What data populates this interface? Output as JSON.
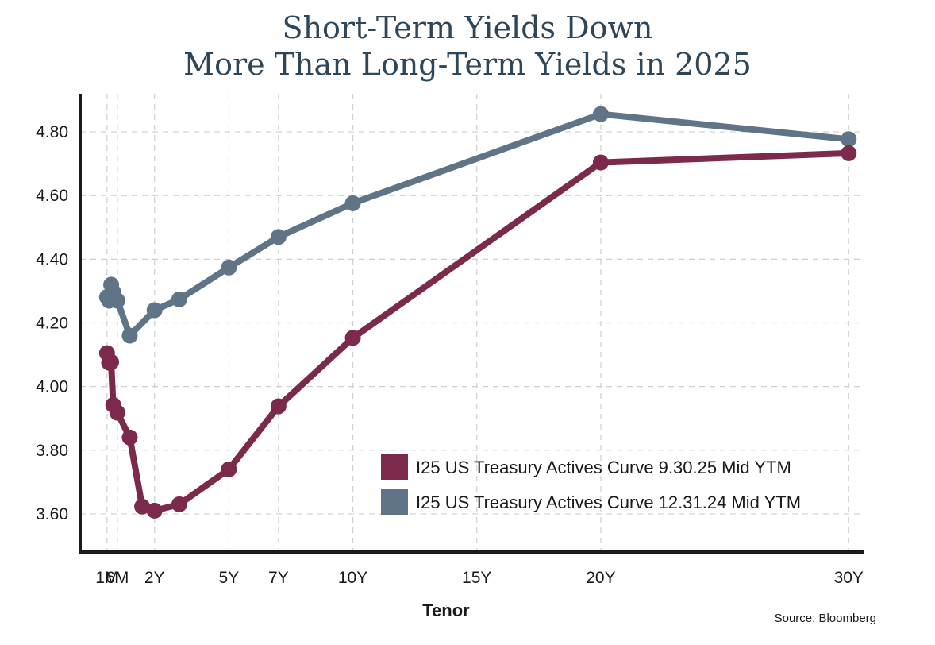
{
  "title_lines": [
    "Short-Term Yields Down",
    "More Than Long-Term Yields in 2025"
  ],
  "source": "Source: Bloomberg",
  "colors": {
    "series_2025": "#7c2a4c",
    "series_2024": "#5f7486",
    "grid": "#cfcfcf",
    "axis": "#1a1a1a",
    "title": "#2f4659"
  },
  "chart_data": {
    "type": "line",
    "xlabel": "Tenor",
    "ylabel": "",
    "x_unit": "years",
    "x_ticks": [
      {
        "x": 0.0833,
        "label": "1M"
      },
      {
        "x": 0.5,
        "label": "6M"
      },
      {
        "x": 2,
        "label": "2Y"
      },
      {
        "x": 5,
        "label": "5Y"
      },
      {
        "x": 7,
        "label": "7Y"
      },
      {
        "x": 10,
        "label": "10Y"
      },
      {
        "x": 15,
        "label": "15Y"
      },
      {
        "x": 20,
        "label": "20Y"
      },
      {
        "x": 30,
        "label": "30Y"
      }
    ],
    "xlim": [
      -1,
      30.6
    ],
    "ylim": [
      3.48,
      4.92
    ],
    "y_ticks": [
      "3.60",
      "3.80",
      "4.00",
      "4.20",
      "4.40",
      "4.60",
      "4.80"
    ],
    "grid": true,
    "legend_position": "lower-right",
    "series": [
      {
        "name": "I25 US Treasury Actives Curve 9.30.25 Mid YTM",
        "color": "#7c2a4c",
        "x": [
          0.0833,
          0.1667,
          0.25,
          0.3333,
          0.5,
          1,
          1.5,
          2,
          3,
          5,
          7,
          10,
          20,
          30
        ],
        "y": [
          4.105,
          4.075,
          4.077,
          3.942,
          3.918,
          3.84,
          3.623,
          3.61,
          3.63,
          3.74,
          3.938,
          4.153,
          4.704,
          4.733
        ]
      },
      {
        "name": "I25 US Treasury Actives Curve 12.31.24 Mid YTM",
        "color": "#5f7486",
        "x": [
          0.0833,
          0.1667,
          0.25,
          0.3333,
          0.5,
          1,
          2,
          3,
          5,
          7,
          10,
          20,
          30
        ],
        "y": [
          4.281,
          4.27,
          4.32,
          4.297,
          4.27,
          4.16,
          4.24,
          4.274,
          4.374,
          4.47,
          4.576,
          4.856,
          4.777
        ]
      }
    ]
  }
}
